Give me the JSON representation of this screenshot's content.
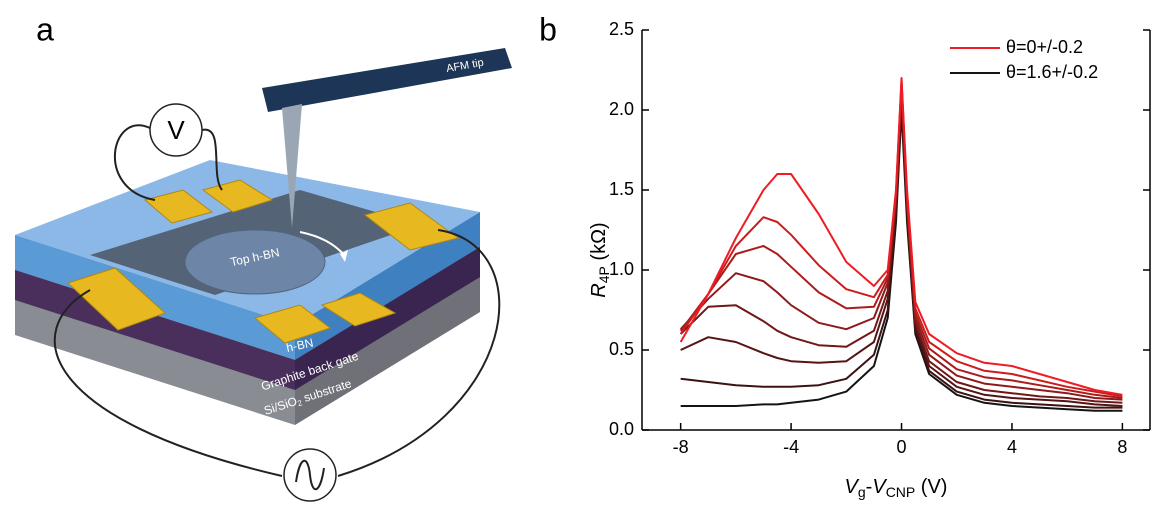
{
  "panels": {
    "a": "a",
    "b": "b"
  },
  "diagram": {
    "afm_tip": "AFM tip",
    "voltmeter": "V",
    "top_hbn": "Top h-BN",
    "hbn": "h-BN",
    "back_gate": "Graphite back gate",
    "substrate": {
      "pre": "Si/SiO",
      "sub": "2",
      "post": " substrate"
    }
  },
  "chart_data": {
    "type": "line",
    "x": [
      -8,
      -7,
      -6,
      -5,
      -4.5,
      -4,
      -3,
      -2,
      -1,
      -0.5,
      -0.2,
      0,
      0.2,
      0.5,
      1,
      2,
      3,
      4,
      5,
      6,
      7,
      8
    ],
    "series": [
      {
        "name": "θ=1.6+/-0.2",
        "color": "#141414",
        "values": [
          0.15,
          0.15,
          0.15,
          0.16,
          0.16,
          0.17,
          0.19,
          0.24,
          0.4,
          0.7,
          1.3,
          2.0,
          1.3,
          0.6,
          0.35,
          0.22,
          0.17,
          0.15,
          0.14,
          0.13,
          0.12,
          0.12
        ]
      },
      {
        "color": "#3c1212",
        "values": [
          0.32,
          0.3,
          0.28,
          0.27,
          0.27,
          0.27,
          0.28,
          0.32,
          0.47,
          0.75,
          1.35,
          2.05,
          1.35,
          0.62,
          0.37,
          0.24,
          0.19,
          0.17,
          0.16,
          0.15,
          0.14,
          0.14
        ]
      },
      {
        "color": "#561515",
        "values": [
          0.5,
          0.58,
          0.55,
          0.48,
          0.45,
          0.43,
          0.42,
          0.43,
          0.55,
          0.82,
          1.4,
          2.1,
          1.38,
          0.65,
          0.4,
          0.27,
          0.22,
          0.2,
          0.19,
          0.18,
          0.16,
          0.15
        ]
      },
      {
        "color": "#701818",
        "values": [
          0.6,
          0.77,
          0.78,
          0.68,
          0.62,
          0.58,
          0.53,
          0.52,
          0.62,
          0.87,
          1.42,
          2.12,
          1.4,
          0.67,
          0.43,
          0.3,
          0.25,
          0.23,
          0.21,
          0.2,
          0.18,
          0.17
        ]
      },
      {
        "color": "#8e1a1a",
        "values": [
          0.63,
          0.82,
          0.98,
          0.93,
          0.86,
          0.78,
          0.67,
          0.63,
          0.7,
          0.92,
          1.45,
          2.15,
          1.42,
          0.7,
          0.47,
          0.34,
          0.29,
          0.27,
          0.25,
          0.23,
          0.2,
          0.19
        ]
      },
      {
        "color": "#ac1b1b",
        "values": [
          0.62,
          0.85,
          1.1,
          1.15,
          1.1,
          1.02,
          0.86,
          0.76,
          0.77,
          0.95,
          1.47,
          2.17,
          1.44,
          0.73,
          0.51,
          0.38,
          0.33,
          0.31,
          0.28,
          0.25,
          0.22,
          0.2
        ]
      },
      {
        "color": "#cc1c1c",
        "values": [
          0.6,
          0.85,
          1.15,
          1.33,
          1.3,
          1.22,
          1.03,
          0.88,
          0.83,
          0.97,
          1.48,
          2.18,
          1.46,
          0.76,
          0.55,
          0.43,
          0.37,
          0.35,
          0.31,
          0.27,
          0.24,
          0.21
        ]
      },
      {
        "name": "θ=0+/-0.2",
        "color": "#ee1c24",
        "values": [
          0.55,
          0.85,
          1.2,
          1.5,
          1.6,
          1.6,
          1.35,
          1.05,
          0.9,
          1.0,
          1.5,
          2.2,
          1.5,
          0.8,
          0.6,
          0.48,
          0.42,
          0.4,
          0.35,
          0.3,
          0.25,
          0.22
        ]
      }
    ],
    "xlim": [
      -9.4,
      9
    ],
    "ylim": [
      0,
      2.5
    ],
    "xticks": [
      -8,
      -4,
      0,
      4,
      8
    ],
    "yticks": [
      {
        "value": 0,
        "label": "0.0"
      },
      0.5,
      {
        "value": 1,
        "label": "1.0"
      },
      1.5,
      {
        "value": 2,
        "label": "2.0"
      },
      2.5
    ],
    "ylabel": {
      "text": "R",
      "sub": "4P",
      "unit": " (kΩ)"
    },
    "xlabel": {
      "v1": "V",
      "sub1": "g",
      "dash": "-",
      "v2": "V",
      "sub2": "CNP",
      "unit": " (V)"
    },
    "legend": "upper right"
  }
}
